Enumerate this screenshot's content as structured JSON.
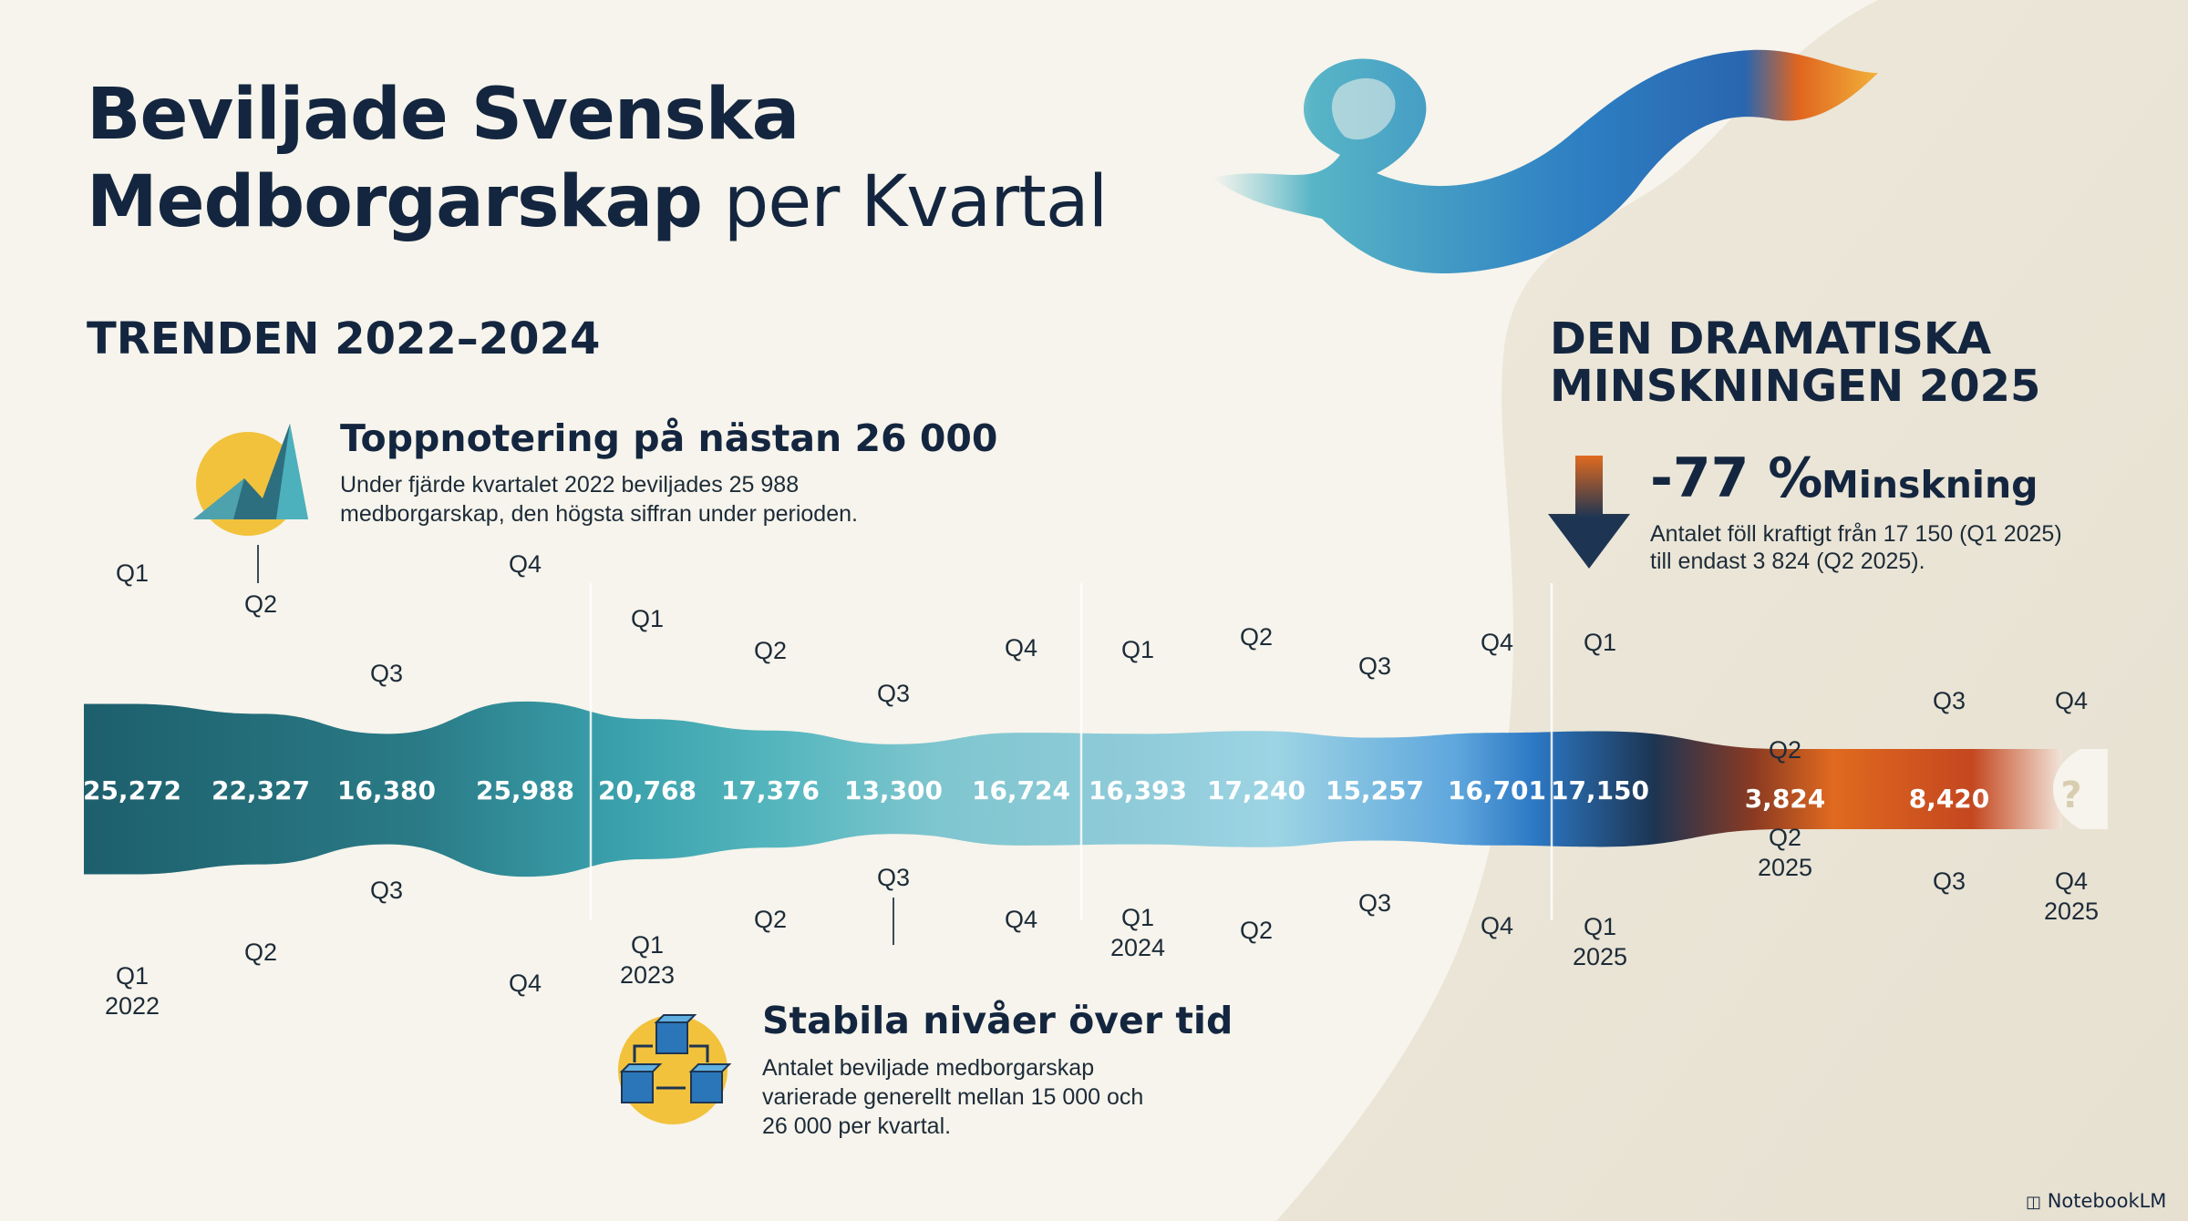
{
  "header": {
    "title_line1": "Beviljade Svenska",
    "title_line2_bold": "Medborgarskap",
    "title_line2_rest": "per Kvartal"
  },
  "sections": {
    "trend_title": "TRENDEN 2022–2024",
    "decline_title_line1": "DEN DRAMATISKA",
    "decline_title_line2": "MINSKNINGEN 2025"
  },
  "callouts": {
    "peak": {
      "title": "Toppnotering på nästan 26 000",
      "text_line1": "Under fjärde kvartalet 2022 beviljades 25 988",
      "text_line2": "medborgarskap, den högsta siffran under perioden."
    },
    "stable": {
      "title": "Stabila nivåer över tid",
      "text_line1": "Antalet beviljade medborgarskap",
      "text_line2": "varierade generellt mellan 15 000 och",
      "text_line3": "26 000 per kvartal."
    },
    "decline": {
      "percent": "-77 %",
      "label": "Minskning",
      "text_line1": "Antalet föll kraftigt från 17 150 (Q1 2025)",
      "text_line2": "till endast 3 824 (Q2 2025)."
    }
  },
  "brand": {
    "name": "NotebookLM"
  },
  "colors": {
    "teal_dark": "#1d5f6c",
    "teal_mid": "#4aa8b4",
    "teal_light": "#9fd2e1",
    "blue": "#2c78c4",
    "navy": "#1d3553",
    "orange": "#e06a1f",
    "red_orange": "#b8431d"
  },
  "chart_data": {
    "type": "area",
    "title": "Beviljade Svenska Medborgarskap per Kvartal",
    "categories": [
      "Q1 2022",
      "Q2 2022",
      "Q3 2022",
      "Q4 2022",
      "Q1 2023",
      "Q2 2023",
      "Q3 2023",
      "Q4 2023",
      "Q1 2024",
      "Q2 2024",
      "Q3 2024",
      "Q4 2024",
      "Q1 2025",
      "Q2 2025",
      "Q3 2025",
      "Q4 2025"
    ],
    "values": [
      25272,
      22327,
      16380,
      25988,
      20768,
      17376,
      13300,
      16724,
      16393,
      17240,
      15257,
      16701,
      17150,
      3824,
      8420,
      null
    ],
    "display_values": [
      "25,272",
      "22,327",
      "16,380",
      "25,988",
      "20,768",
      "17,376",
      "13,300",
      "16,724",
      "16,393",
      "17,240",
      "15,257",
      "16,701",
      "17,150",
      "3,824",
      "8,420",
      "?"
    ],
    "quarter_labels": [
      "Q1",
      "Q2",
      "Q3",
      "Q4",
      "Q1",
      "Q2",
      "Q3",
      "Q4",
      "Q1",
      "Q2",
      "Q3",
      "Q4",
      "Q1",
      "Q2",
      "Q3",
      "Q4"
    ],
    "year_labels": [
      "2022",
      "",
      "",
      "",
      "2023",
      "",
      "",
      "",
      "2024",
      "",
      "",
      "",
      "2025",
      "2025",
      "",
      "2025"
    ],
    "xlabel": "",
    "ylabel": "",
    "grid": false,
    "legend": "none"
  }
}
